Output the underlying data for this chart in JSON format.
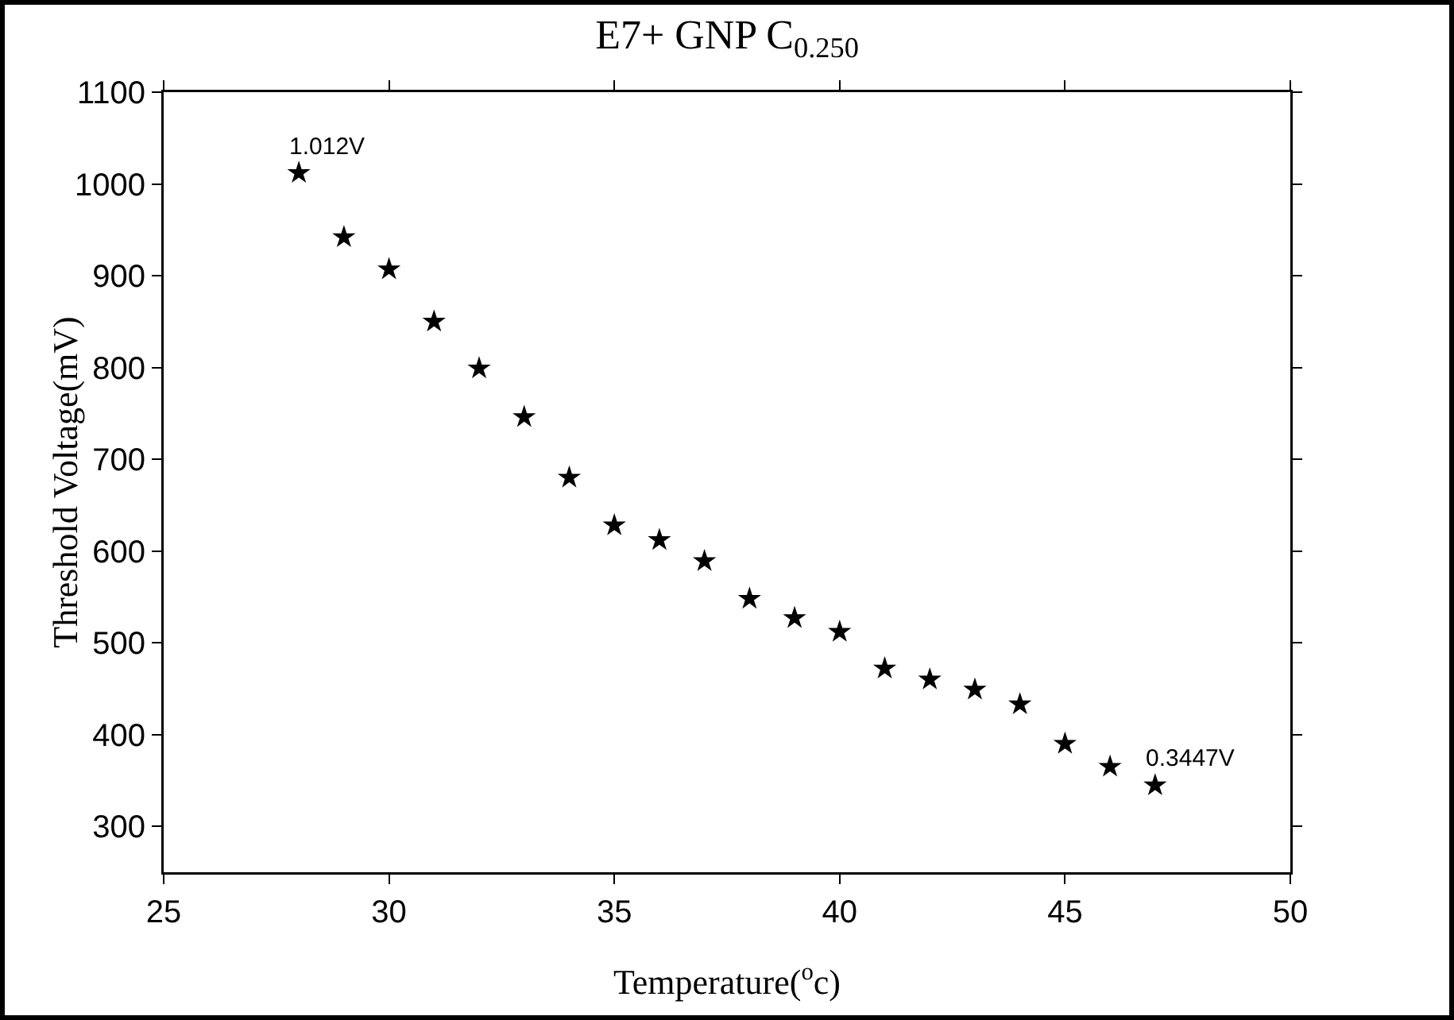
{
  "chart_data": {
    "type": "scatter",
    "title": "E7+ GNP C$_{0.250}$",
    "xlabel": "Temperature($^{o}$c)",
    "ylabel": "Threshold Voltage(mV)",
    "x": [
      28,
      29,
      30,
      31,
      32,
      33,
      34,
      35,
      36,
      37,
      38,
      39,
      40,
      41,
      42,
      43,
      44,
      45,
      46,
      47
    ],
    "series": [
      {
        "color": "#000000",
        "values": [
          1012,
          942,
          907,
          850,
          799,
          746,
          680,
          628,
          612,
          589,
          548,
          527,
          512,
          472,
          460,
          449,
          433,
          390,
          365,
          344.7
        ]
      }
    ],
    "xlim": [
      25,
      50
    ],
    "xticks": [
      25,
      30,
      35,
      40,
      45,
      50
    ],
    "ylim": [
      250,
      1100
    ],
    "yticks": [
      300,
      400,
      500,
      600,
      700,
      800,
      900,
      1000,
      1100
    ],
    "marker": "star",
    "annotations": [
      {
        "text": "1.012V",
        "x": 28,
        "y": 1012
      },
      {
        "text": "0.3447V",
        "x": 47,
        "y": 344.7
      }
    ]
  }
}
